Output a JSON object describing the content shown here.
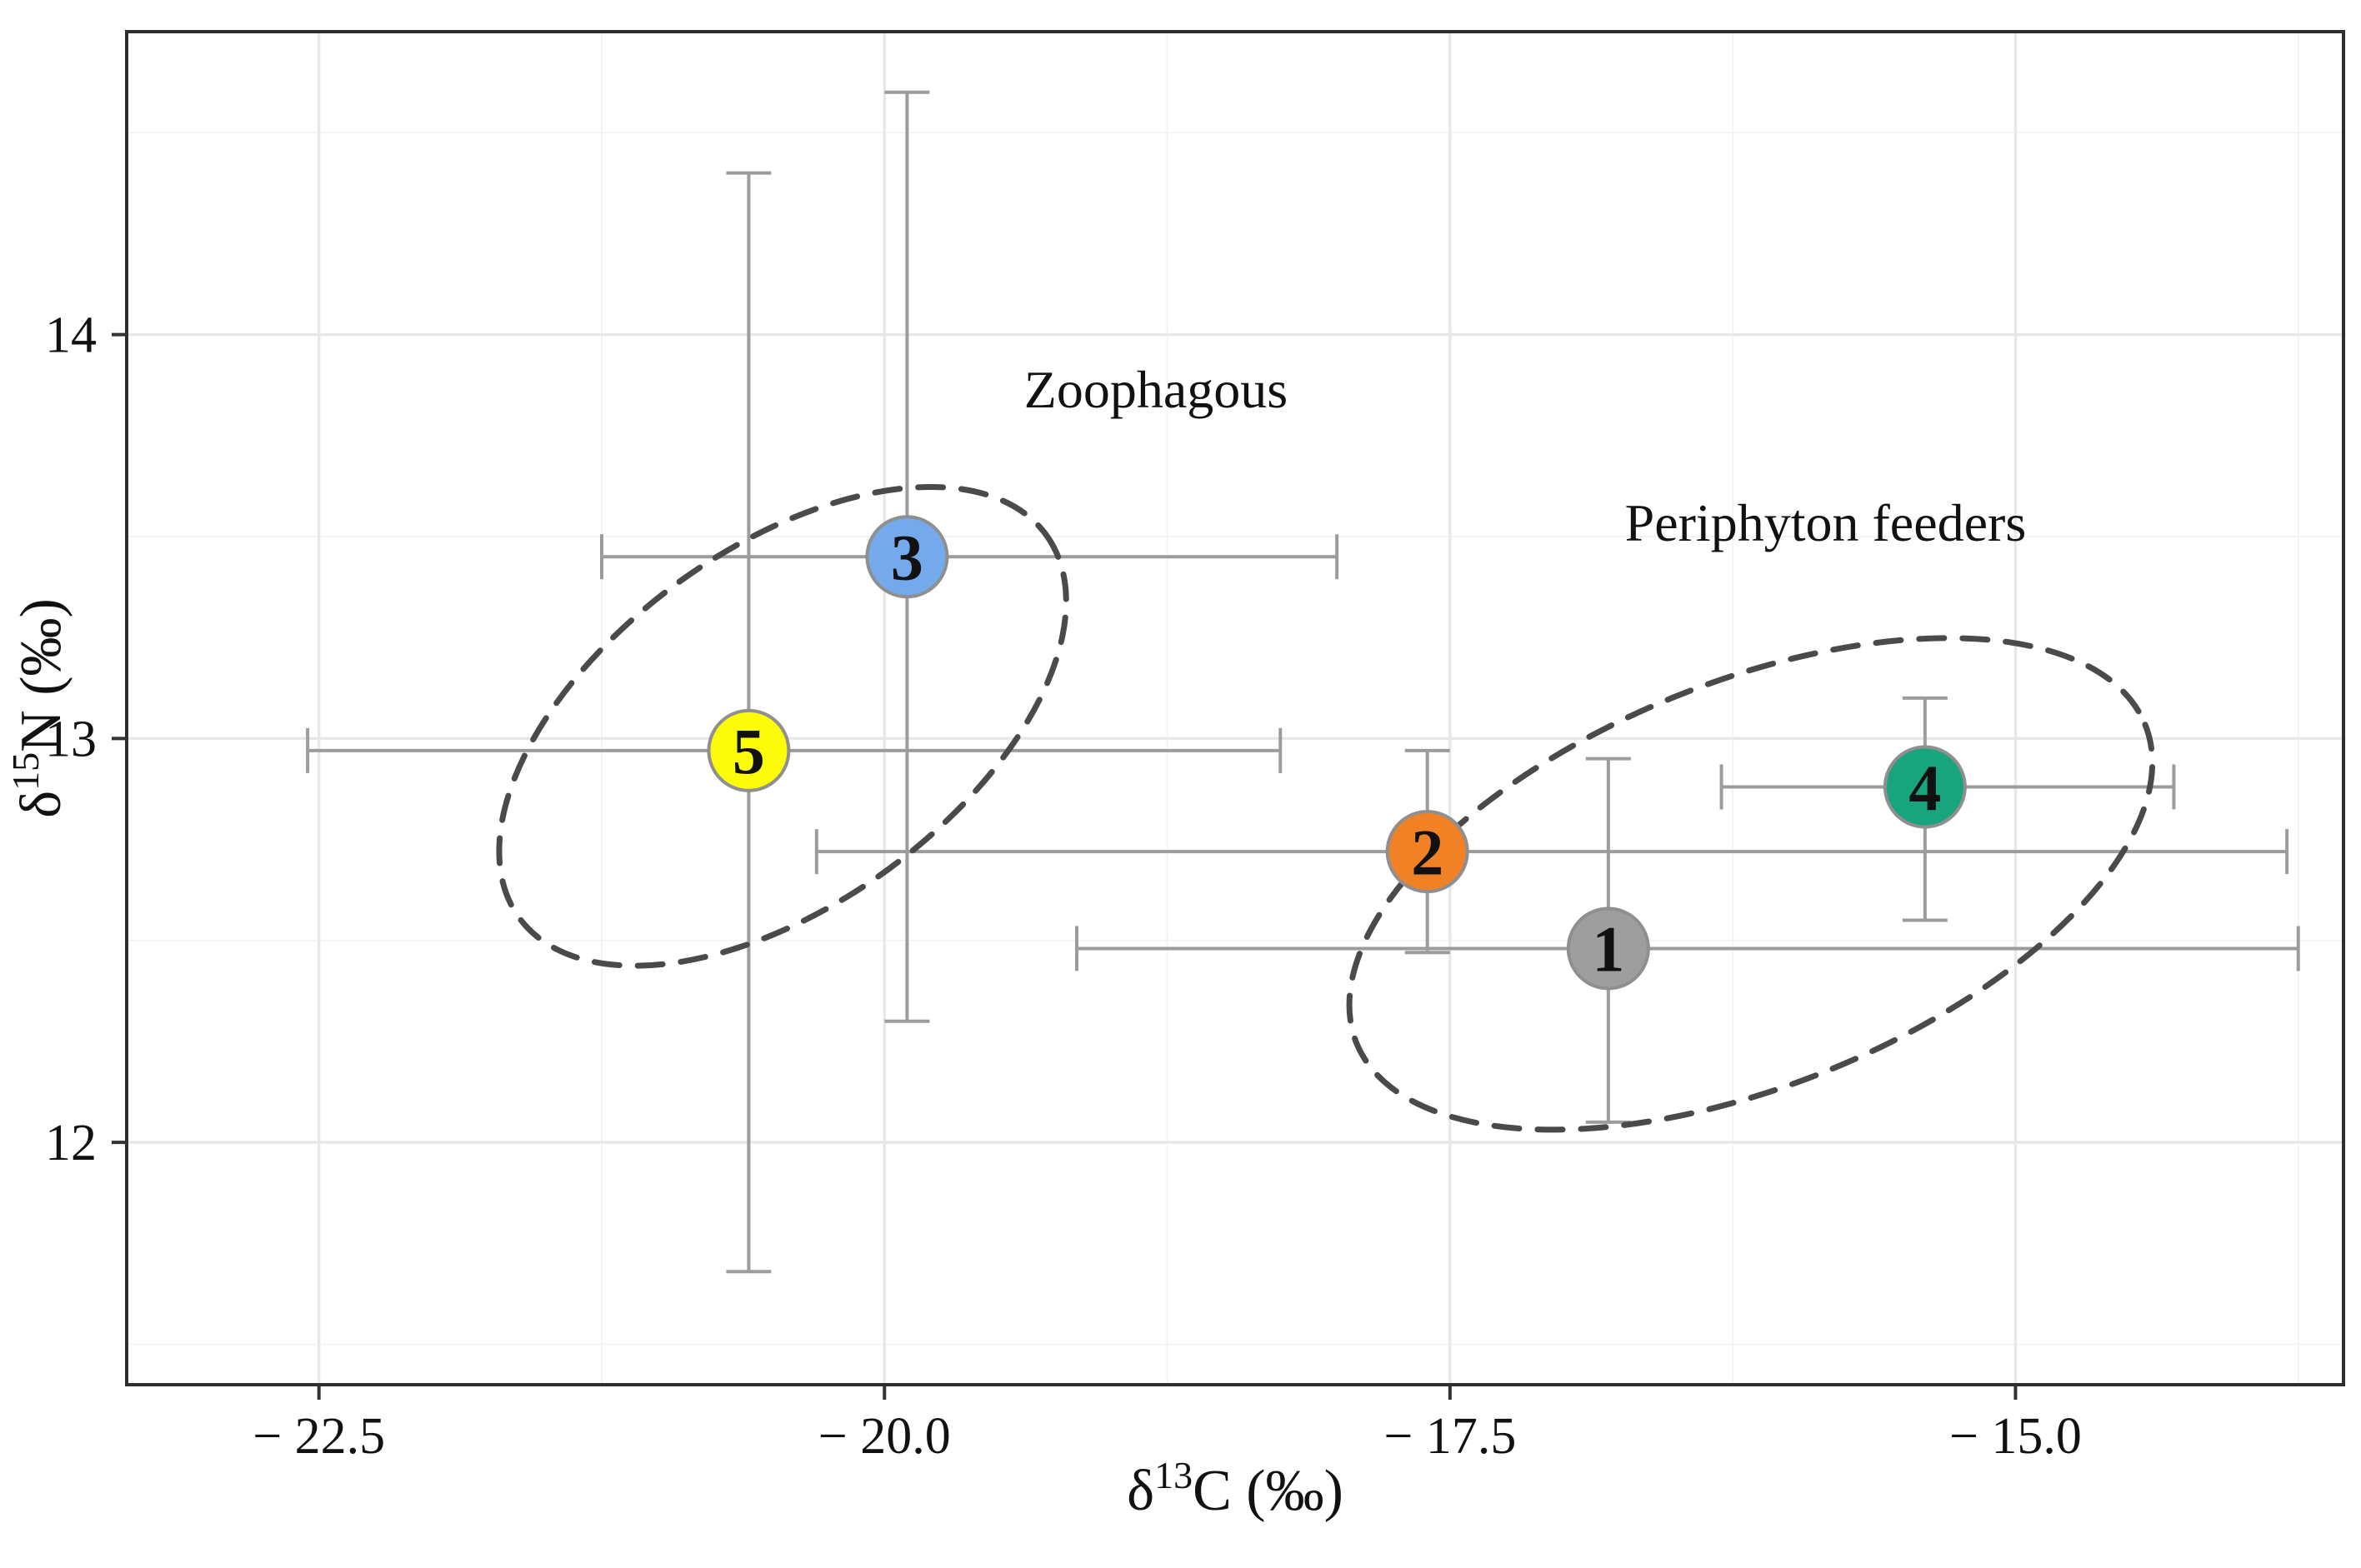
{
  "figure": {
    "background": "#ffffff",
    "panel_border_color": "#2e2e2e",
    "grid_major_color": "#e8e8e8",
    "grid_minor_color": "#f4f4f4",
    "tick_color": "#333333",
    "text_color": "#111111",
    "errorbar_color": "#9c9c9c",
    "point_border_color": "#8f8f8f",
    "ellipse_color": "#4a4a4a"
  },
  "chart_data": {
    "type": "scatter",
    "title": "",
    "xlabel": {
      "prefix": "δ",
      "superscript": "13",
      "suffix": "C (‰)"
    },
    "ylabel": {
      "prefix": "δ",
      "superscript": "15",
      "suffix": "N (‰)"
    },
    "xlim": [
      -23.35,
      -13.55
    ],
    "ylim": [
      11.4,
      14.75
    ],
    "grid": true,
    "legend": "none",
    "x_ticks": [
      {
        "value": -22.5,
        "label": "− 22.5"
      },
      {
        "value": -20.0,
        "label": "− 20.0"
      },
      {
        "value": -17.5,
        "label": "− 17.5"
      },
      {
        "value": -15.0,
        "label": "− 15.0"
      }
    ],
    "y_ticks": [
      {
        "value": 12,
        "label": "12"
      },
      {
        "value": 13,
        "label": "13"
      },
      {
        "value": 14,
        "label": "14"
      }
    ],
    "x_minor_ticks": [
      -21.25,
      -18.75,
      -16.25,
      -13.75
    ],
    "y_minor_ticks": [
      11.5,
      12.5,
      13.5,
      14.5
    ],
    "points": [
      {
        "label": "1",
        "group": "Periphyton feeders",
        "x": -16.8,
        "y": 12.48,
        "x_err": [
          -19.15,
          -13.75
        ],
        "y_err": [
          12.05,
          12.95
        ],
        "color": "#9e9e9e"
      },
      {
        "label": "2",
        "group": "Periphyton feeders",
        "x": -17.6,
        "y": 12.72,
        "x_err": [
          -20.3,
          -13.8
        ],
        "y_err": [
          12.47,
          12.97
        ],
        "color": "#f08125"
      },
      {
        "label": "3",
        "group": "Zoophagous",
        "x": -19.9,
        "y": 13.45,
        "x_err": [
          -21.25,
          -18.0
        ],
        "y_err": [
          12.3,
          14.6
        ],
        "color": "#74aaec"
      },
      {
        "label": "4",
        "group": "Periphyton feeders",
        "x": -15.4,
        "y": 12.88,
        "x_err": [
          -16.3,
          -14.3
        ],
        "y_err": [
          12.55,
          13.1
        ],
        "color": "#18a47c"
      },
      {
        "label": "5",
        "group": "Zoophagous",
        "x": -20.6,
        "y": 12.97,
        "x_err": [
          -22.55,
          -18.25
        ],
        "y_err": [
          11.68,
          14.4
        ],
        "color": "#fcfc0a"
      }
    ],
    "groups": [
      {
        "id": "zoophagous",
        "label": "Zoophagous",
        "label_x": -18.8,
        "label_y": 13.82,
        "ellipse": {
          "cx": -20.45,
          "cy": 13.03,
          "rx": 1.44,
          "ry": 0.44,
          "angle_deg": -36
        }
      },
      {
        "id": "periphyton-feeders",
        "label": "Periphyton feeders",
        "label_x": -15.84,
        "label_y": 13.49,
        "ellipse": {
          "cx": -16.17,
          "cy": 12.64,
          "rx": 1.88,
          "ry": 0.5,
          "angle_deg": -22
        }
      }
    ]
  }
}
